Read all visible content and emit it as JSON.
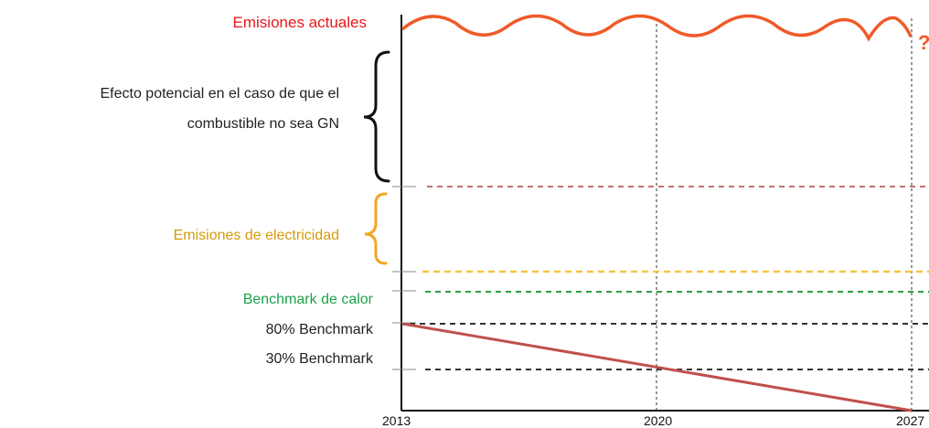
{
  "labels": {
    "current_emissions": "Emisiones actuales",
    "potential_effect_line1": "Efecto potencial en el caso de que el",
    "potential_effect_line2": "combustible no sea GN",
    "electricity_emissions": "Emisiones de electricidad",
    "heat_benchmark": "Benchmark de calor",
    "benchmark_80": "80% Benchmark",
    "benchmark_30": "30% Benchmark",
    "question_mark": "?"
  },
  "x_ticks": [
    "2013",
    "2020",
    "2027"
  ],
  "colors": {
    "current_emissions": "#f05a28",
    "potential_effect_brace": "#111111",
    "electricity_brace": "#f5a623",
    "reference_line": "#c0736e",
    "electricity_line": "#f5c542",
    "heat_benchmark_line": "#2e9e3e",
    "benchmark_lines": "#333333",
    "declining_line": "#c0504d"
  }
}
